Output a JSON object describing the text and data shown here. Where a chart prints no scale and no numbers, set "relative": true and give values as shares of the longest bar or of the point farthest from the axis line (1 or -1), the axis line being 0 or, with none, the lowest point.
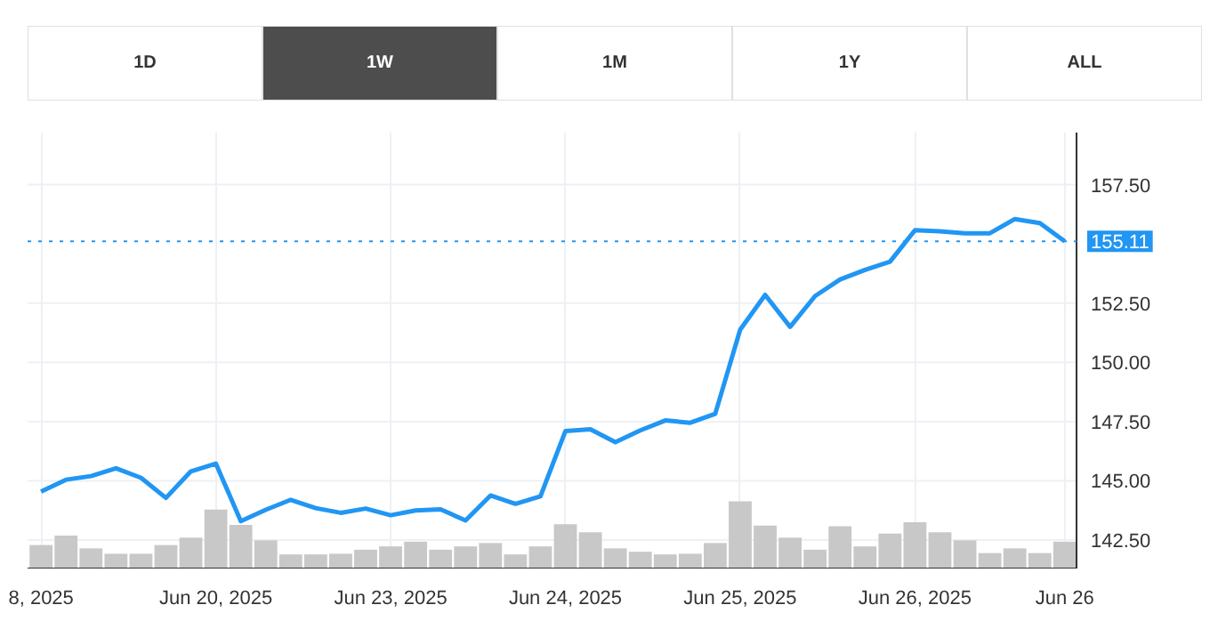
{
  "chart_data": [
    {
      "type": "line",
      "annotations": [
        "1D",
        "1W",
        "1M",
        "1Y",
        "ALL"
      ],
      "categories": [
        "8, 2025",
        null,
        null,
        null,
        null,
        null,
        null,
        "Jun 20, 2025",
        null,
        null,
        null,
        null,
        null,
        null,
        "Jun 23, 2025",
        null,
        null,
        null,
        null,
        null,
        null,
        "Jun 24, 2025",
        null,
        null,
        null,
        null,
        null,
        null,
        "Jun 25, 2025",
        null,
        null,
        null,
        null,
        null,
        null,
        "Jun 26, 2025",
        null,
        null,
        null,
        null,
        null,
        "Jun 26"
      ],
      "series": [
        {
          "color": "#2196f3",
          "values": [
            144.55,
            145.05,
            145.2,
            145.53,
            145.13,
            144.28,
            145.4,
            145.73,
            143.3,
            143.78,
            144.2,
            143.85,
            143.65,
            143.83,
            143.55,
            143.75,
            143.8,
            143.33,
            144.38,
            144.03,
            144.35,
            147.1,
            147.18,
            146.63,
            147.13,
            147.55,
            147.45,
            147.83,
            151.38,
            152.85,
            151.5,
            152.8,
            153.5,
            153.9,
            154.25,
            155.58,
            155.53,
            155.45,
            155.45,
            156.05,
            155.88,
            155.11
          ]
        }
      ],
      "ylim": [
        141.3,
        159.7
      ],
      "yticks": [
        {
          "value": 142.5,
          "label": "142.50"
        },
        {
          "value": 145,
          "label": "145.00"
        },
        {
          "value": 147.5,
          "label": "147.50"
        },
        {
          "value": 150,
          "label": "150.00"
        },
        {
          "value": 152.5,
          "label": "152.50"
        },
        {
          "value": 157.5,
          "label": "157.50"
        }
      ],
      "ref_lines": [
        {
          "axis": "y",
          "value": 155.11,
          "label": "155.11",
          "color": "#2196f3",
          "line_style": "dotted"
        }
      ],
      "grid": true
    },
    {
      "type": "bar",
      "relative": true,
      "color": "#c8c8c8",
      "categories": [
        null,
        null,
        null,
        null,
        null,
        null,
        null,
        null,
        null,
        null,
        null,
        null,
        null,
        null,
        null,
        null,
        null,
        null,
        null,
        null,
        null,
        null,
        null,
        null,
        null,
        null,
        null,
        null,
        null,
        null,
        null,
        null,
        null,
        null,
        null,
        null,
        null,
        null,
        null,
        null,
        null,
        null
      ],
      "values": [
        0.35,
        0.49,
        0.3,
        0.22,
        0.22,
        0.35,
        0.46,
        0.88,
        0.65,
        0.42,
        0.21,
        0.21,
        0.22,
        0.28,
        0.33,
        0.4,
        0.28,
        0.33,
        0.38,
        0.21,
        0.33,
        0.66,
        0.54,
        0.3,
        0.25,
        0.21,
        0.22,
        0.38,
        1,
        0.64,
        0.46,
        0.28,
        0.63,
        0.33,
        0.52,
        0.69,
        0.54,
        0.42,
        0.23,
        0.3,
        0.23,
        0.4
      ]
    }
  ]
}
